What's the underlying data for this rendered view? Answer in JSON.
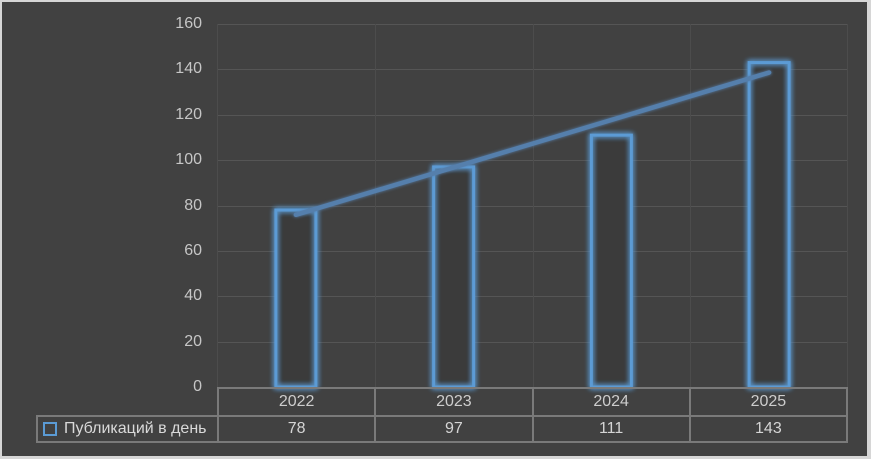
{
  "chart_data": {
    "type": "bar",
    "title": "",
    "categories": [
      "2022",
      "2023",
      "2024",
      "2025"
    ],
    "series": [
      {
        "name": "Публикаций в день",
        "values": [
          78,
          97,
          111,
          143
        ]
      }
    ],
    "trendline": {
      "type": "linear",
      "spans": "first-to-last-category"
    },
    "ylim": [
      0,
      160
    ],
    "yticks": [
      0,
      20,
      40,
      60,
      80,
      100,
      120,
      140,
      160
    ],
    "xlabel": "",
    "ylabel": "",
    "grid": true,
    "legend_position": "bottom-left-of-data-table",
    "data_table_shown": true
  },
  "legend": {
    "label": "Публикаций в день"
  },
  "data_table": {
    "columns": [
      "2022",
      "2023",
      "2024",
      "2025"
    ],
    "row_label": "Публикаций в день",
    "values": [
      "78",
      "97",
      "111",
      "143"
    ]
  },
  "colors": {
    "background": "#414141",
    "frame": "#D6D6D6",
    "accent": "#5B9BD5",
    "trendline": "#557FAC",
    "gridline_h": "#555555",
    "gridline_v": "#4C4C4C",
    "table_border": "#7A7A7A",
    "axis_text": "#C6C6C6",
    "table_text": "#D5D5D5"
  }
}
